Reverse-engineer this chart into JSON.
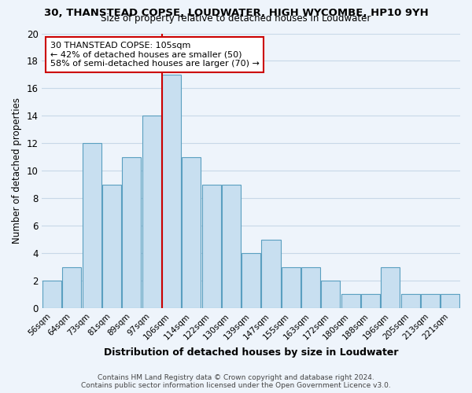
{
  "title": "30, THANSTEAD COPSE, LOUDWATER, HIGH WYCOMBE, HP10 9YH",
  "subtitle": "Size of property relative to detached houses in Loudwater",
  "xlabel": "Distribution of detached houses by size in Loudwater",
  "ylabel": "Number of detached properties",
  "bin_labels": [
    "56sqm",
    "64sqm",
    "73sqm",
    "81sqm",
    "89sqm",
    "97sqm",
    "106sqm",
    "114sqm",
    "122sqm",
    "130sqm",
    "139sqm",
    "147sqm",
    "155sqm",
    "163sqm",
    "172sqm",
    "180sqm",
    "188sqm",
    "196sqm",
    "205sqm",
    "213sqm",
    "221sqm"
  ],
  "bar_heights": [
    2,
    3,
    12,
    9,
    11,
    14,
    17,
    11,
    9,
    9,
    4,
    5,
    3,
    3,
    2,
    1,
    1,
    3,
    1,
    1,
    1
  ],
  "highlight_bin_index": 6,
  "bar_color": "#c8dff0",
  "bar_edgecolor": "#5a9fc0",
  "highlight_line_color": "#cc0000",
  "annotation_text": "30 THANSTEAD COPSE: 105sqm\n← 42% of detached houses are smaller (50)\n58% of semi-detached houses are larger (70) →",
  "ylim": [
    0,
    20
  ],
  "yticks": [
    0,
    2,
    4,
    6,
    8,
    10,
    12,
    14,
    16,
    18,
    20
  ],
  "footer_line1": "Contains HM Land Registry data © Crown copyright and database right 2024.",
  "footer_line2": "Contains public sector information licensed under the Open Government Licence v3.0.",
  "grid_color": "#c8d8e8",
  "background_color": "#eef4fb"
}
